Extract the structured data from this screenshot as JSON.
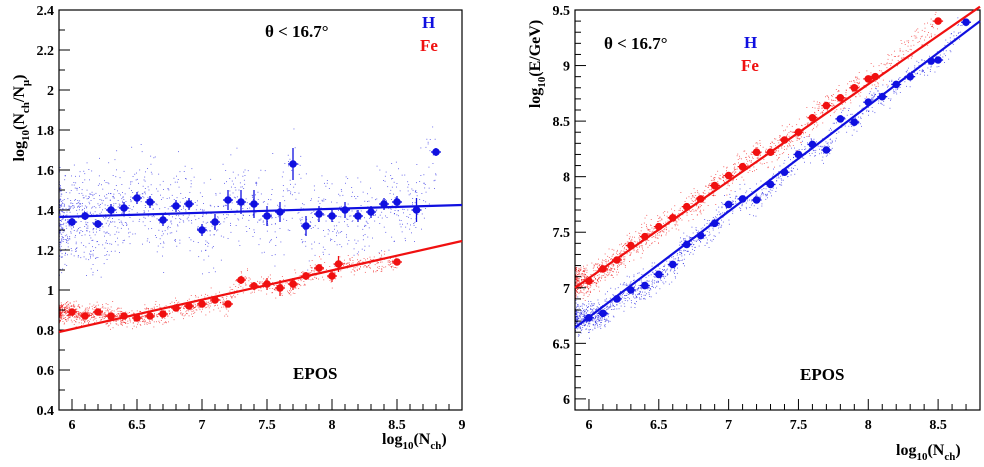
{
  "colors": {
    "H": "#1010e0",
    "Fe": "#f01010",
    "axis": "#000000"
  },
  "chart_data": [
    {
      "type": "scatter",
      "xlabel": {
        "main": "log",
        "sub": "10",
        "rest": "(N",
        "sub2": "ch",
        "end": ")"
      },
      "ylabel": {
        "main": "log",
        "sub": "10",
        "rest": "(N",
        "sub2": "ch",
        "mid": "/N",
        "sub3": "μ",
        "end": ")"
      },
      "xlim": [
        5.9,
        9.0
      ],
      "ylim": [
        0.4,
        2.4
      ],
      "xticks": [
        "6",
        "6.5",
        "7",
        "7.5",
        "8",
        "8.5",
        "9"
      ],
      "yticks": [
        "0.4",
        "0.6",
        "0.8",
        "1",
        "1.2",
        "1.4",
        "1.6",
        "1.8",
        "2",
        "2.2",
        "2.4"
      ],
      "annotation_cut": "θ < 16.7°",
      "model_label": "EPOS",
      "series": [
        {
          "name": "H",
          "points": [
            [
              6.0,
              1.34,
              0.02
            ],
            [
              6.1,
              1.37,
              0.02
            ],
            [
              6.2,
              1.33,
              0.02
            ],
            [
              6.3,
              1.4,
              0.03
            ],
            [
              6.4,
              1.41,
              0.03
            ],
            [
              6.5,
              1.46,
              0.03
            ],
            [
              6.6,
              1.44,
              0.03
            ],
            [
              6.7,
              1.35,
              0.03
            ],
            [
              6.8,
              1.42,
              0.03
            ],
            [
              6.9,
              1.43,
              0.03
            ],
            [
              7.0,
              1.3,
              0.03
            ],
            [
              7.1,
              1.34,
              0.04
            ],
            [
              7.2,
              1.45,
              0.05
            ],
            [
              7.3,
              1.44,
              0.06
            ],
            [
              7.4,
              1.43,
              0.07
            ],
            [
              7.5,
              1.37,
              0.05
            ],
            [
              7.6,
              1.39,
              0.05
            ],
            [
              7.7,
              1.63,
              0.08
            ],
            [
              7.8,
              1.32,
              0.05
            ],
            [
              7.9,
              1.38,
              0.04
            ],
            [
              8.0,
              1.37,
              0.03
            ],
            [
              8.1,
              1.4,
              0.04
            ],
            [
              8.2,
              1.37,
              0.03
            ],
            [
              8.3,
              1.39,
              0.03
            ],
            [
              8.4,
              1.43,
              0.03
            ],
            [
              8.5,
              1.44,
              0.03
            ],
            [
              8.65,
              1.4,
              0.06
            ],
            [
              8.8,
              1.69,
              0.02
            ]
          ],
          "fit": [
            [
              5.9,
              1.365
            ],
            [
              9.0,
              1.425
            ]
          ]
        },
        {
          "name": "Fe",
          "points": [
            [
              6.0,
              0.89,
              0.01
            ],
            [
              6.1,
              0.87,
              0.01
            ],
            [
              6.2,
              0.89,
              0.01
            ],
            [
              6.3,
              0.87,
              0.01
            ],
            [
              6.4,
              0.87,
              0.01
            ],
            [
              6.5,
              0.86,
              0.01
            ],
            [
              6.6,
              0.87,
              0.01
            ],
            [
              6.7,
              0.88,
              0.01
            ],
            [
              6.8,
              0.91,
              0.01
            ],
            [
              6.9,
              0.92,
              0.01
            ],
            [
              7.0,
              0.93,
              0.01
            ],
            [
              7.1,
              0.95,
              0.01
            ],
            [
              7.2,
              0.93,
              0.01
            ],
            [
              7.3,
              1.05,
              0.02
            ],
            [
              7.4,
              1.02,
              0.02
            ],
            [
              7.5,
              1.03,
              0.03
            ],
            [
              7.6,
              1.01,
              0.04
            ],
            [
              7.7,
              1.03,
              0.03
            ],
            [
              7.8,
              1.07,
              0.02
            ],
            [
              7.9,
              1.11,
              0.02
            ],
            [
              8.0,
              1.07,
              0.03
            ],
            [
              8.05,
              1.13,
              0.04
            ],
            [
              8.5,
              1.14,
              0.01
            ]
          ],
          "fit": [
            [
              5.9,
              0.79
            ],
            [
              9.0,
              1.245
            ]
          ]
        }
      ]
    },
    {
      "type": "scatter",
      "xlabel": {
        "main": "log",
        "sub": "10",
        "rest": "(N",
        "sub2": "ch",
        "end": ")"
      },
      "ylabel": {
        "main": "log",
        "sub": "10",
        "rest": "(E/GeV)"
      },
      "xlim": [
        5.9,
        8.8
      ],
      "ylim": [
        5.9,
        9.5
      ],
      "xticks": [
        "6",
        "6.5",
        "7",
        "7.5",
        "8",
        "8.5"
      ],
      "yticks": [
        "6",
        "6.5",
        "7",
        "7.5",
        "8",
        "8.5",
        "9",
        "9.5"
      ],
      "annotation_cut": "θ < 16.7°",
      "model_label": "EPOS",
      "series": [
        {
          "name": "H",
          "points": [
            [
              6.0,
              6.73
            ],
            [
              6.1,
              6.77
            ],
            [
              6.2,
              6.9
            ],
            [
              6.3,
              6.98
            ],
            [
              6.4,
              7.02
            ],
            [
              6.5,
              7.12
            ],
            [
              6.6,
              7.21
            ],
            [
              6.7,
              7.39
            ],
            [
              6.8,
              7.47
            ],
            [
              6.9,
              7.58
            ],
            [
              7.0,
              7.75
            ],
            [
              7.1,
              7.8
            ],
            [
              7.2,
              7.79
            ],
            [
              7.3,
              7.93
            ],
            [
              7.4,
              8.04
            ],
            [
              7.5,
              8.2
            ],
            [
              7.6,
              8.29
            ],
            [
              7.7,
              8.24
            ],
            [
              7.8,
              8.52
            ],
            [
              7.9,
              8.49
            ],
            [
              8.0,
              8.67
            ],
            [
              8.1,
              8.72
            ],
            [
              8.2,
              8.83
            ],
            [
              8.3,
              8.9
            ],
            [
              8.45,
              9.04
            ],
            [
              8.5,
              9.05
            ],
            [
              8.7,
              9.39
            ]
          ],
          "fit": [
            [
              5.9,
              6.64
            ],
            [
              8.8,
              9.4
            ]
          ]
        },
        {
          "name": "Fe",
          "points": [
            [
              6.0,
              7.06
            ],
            [
              6.1,
              7.17
            ],
            [
              6.2,
              7.25
            ],
            [
              6.3,
              7.38
            ],
            [
              6.4,
              7.46
            ],
            [
              6.5,
              7.55
            ],
            [
              6.6,
              7.63
            ],
            [
              6.7,
              7.73
            ],
            [
              6.8,
              7.8
            ],
            [
              6.9,
              7.92
            ],
            [
              7.0,
              8.01
            ],
            [
              7.1,
              8.09
            ],
            [
              7.2,
              8.22
            ],
            [
              7.3,
              8.22
            ],
            [
              7.4,
              8.33
            ],
            [
              7.5,
              8.4
            ],
            [
              7.6,
              8.53
            ],
            [
              7.7,
              8.64
            ],
            [
              7.8,
              8.71
            ],
            [
              7.9,
              8.8
            ],
            [
              8.0,
              8.88
            ],
            [
              8.05,
              8.9
            ],
            [
              8.5,
              9.4
            ]
          ],
          "fit": [
            [
              5.9,
              7.0
            ],
            [
              8.8,
              9.53
            ]
          ]
        }
      ]
    }
  ]
}
